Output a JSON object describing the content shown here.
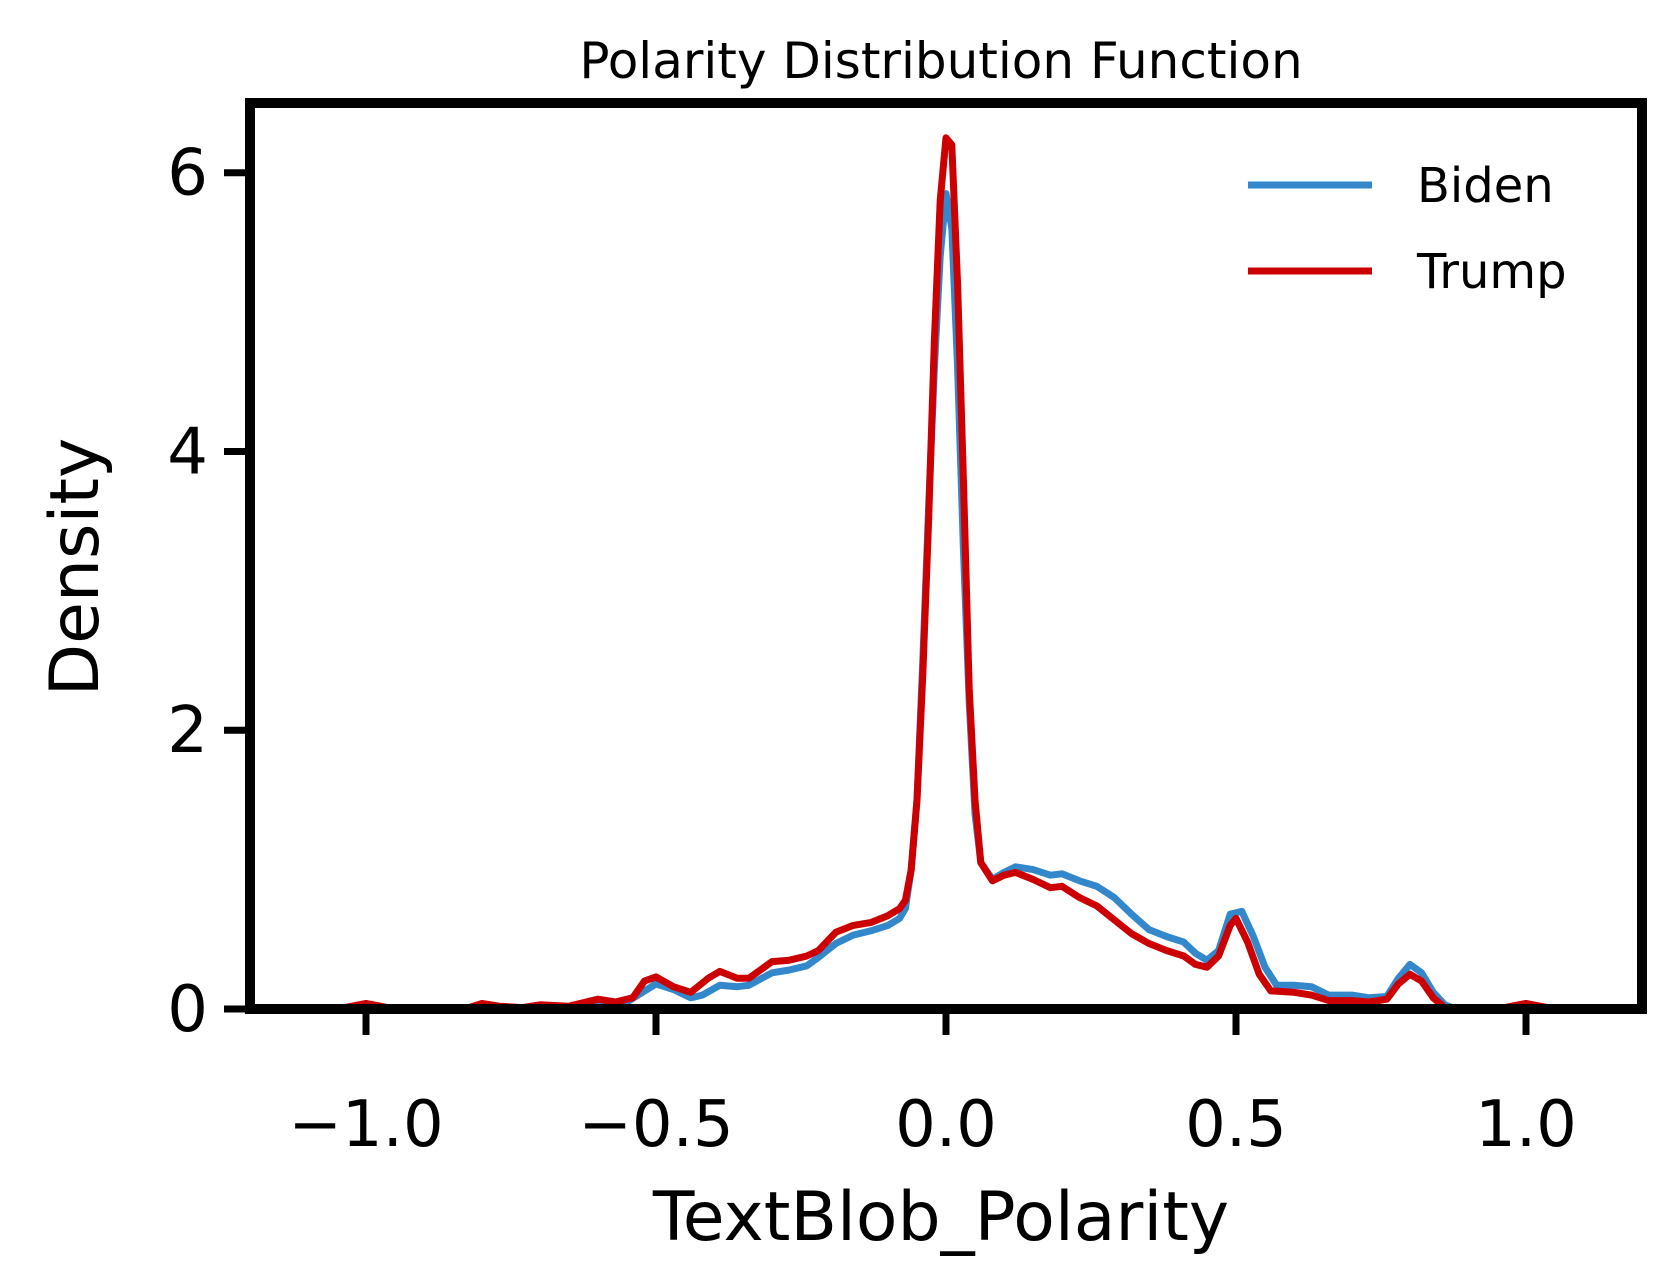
{
  "chart_data": {
    "type": "line",
    "title": "Polarity Distribution Function",
    "xlabel": "TextBlob_Polarity",
    "ylabel": "Density",
    "xlim": [
      -1.2,
      1.2
    ],
    "ylim": [
      0,
      6.5
    ],
    "xticks": [
      -1.0,
      -0.5,
      0.0,
      0.5,
      1.0
    ],
    "xtick_labels": [
      "−1.0",
      "−0.5",
      "0.0",
      "0.5",
      "1.0"
    ],
    "yticks": [
      0,
      2,
      4,
      6
    ],
    "ytick_labels": [
      "0",
      "2",
      "4",
      "6"
    ],
    "grid": false,
    "legend_position": "top-right",
    "series": [
      {
        "name": "Biden",
        "color": "#3388cc",
        "points": [
          [
            -1.05,
            0.0
          ],
          [
            -1.0,
            0.01
          ],
          [
            -0.95,
            0.0
          ],
          [
            -0.8,
            0.0
          ],
          [
            -0.75,
            0.0
          ],
          [
            -0.7,
            0.01
          ],
          [
            -0.65,
            0.01
          ],
          [
            -0.6,
            0.02
          ],
          [
            -0.55,
            0.05
          ],
          [
            -0.5,
            0.18
          ],
          [
            -0.47,
            0.14
          ],
          [
            -0.44,
            0.08
          ],
          [
            -0.42,
            0.1
          ],
          [
            -0.39,
            0.17
          ],
          [
            -0.36,
            0.16
          ],
          [
            -0.34,
            0.17
          ],
          [
            -0.3,
            0.26
          ],
          [
            -0.27,
            0.28
          ],
          [
            -0.24,
            0.31
          ],
          [
            -0.22,
            0.37
          ],
          [
            -0.19,
            0.47
          ],
          [
            -0.16,
            0.53
          ],
          [
            -0.13,
            0.56
          ],
          [
            -0.1,
            0.6
          ],
          [
            -0.08,
            0.65
          ],
          [
            -0.07,
            0.72
          ],
          [
            -0.06,
            1.0
          ],
          [
            -0.05,
            1.5
          ],
          [
            -0.04,
            2.5
          ],
          [
            -0.03,
            3.6
          ],
          [
            -0.02,
            4.6
          ],
          [
            -0.01,
            5.4
          ],
          [
            0.0,
            5.85
          ],
          [
            0.01,
            5.6
          ],
          [
            0.02,
            4.6
          ],
          [
            0.03,
            3.3
          ],
          [
            0.04,
            2.2
          ],
          [
            0.05,
            1.4
          ],
          [
            0.06,
            1.05
          ],
          [
            0.08,
            0.93
          ],
          [
            0.1,
            0.98
          ],
          [
            0.12,
            1.02
          ],
          [
            0.15,
            1.0
          ],
          [
            0.18,
            0.96
          ],
          [
            0.2,
            0.97
          ],
          [
            0.23,
            0.92
          ],
          [
            0.26,
            0.88
          ],
          [
            0.29,
            0.8
          ],
          [
            0.32,
            0.68
          ],
          [
            0.35,
            0.57
          ],
          [
            0.38,
            0.52
          ],
          [
            0.41,
            0.48
          ],
          [
            0.43,
            0.4
          ],
          [
            0.45,
            0.35
          ],
          [
            0.47,
            0.42
          ],
          [
            0.49,
            0.68
          ],
          [
            0.51,
            0.7
          ],
          [
            0.53,
            0.52
          ],
          [
            0.55,
            0.3
          ],
          [
            0.57,
            0.17
          ],
          [
            0.6,
            0.17
          ],
          [
            0.63,
            0.16
          ],
          [
            0.66,
            0.1
          ],
          [
            0.7,
            0.1
          ],
          [
            0.73,
            0.08
          ],
          [
            0.76,
            0.09
          ],
          [
            0.78,
            0.22
          ],
          [
            0.8,
            0.32
          ],
          [
            0.82,
            0.26
          ],
          [
            0.84,
            0.12
          ],
          [
            0.86,
            0.03
          ],
          [
            0.88,
            0.0
          ],
          [
            0.95,
            0.0
          ],
          [
            1.0,
            0.0
          ],
          [
            1.05,
            0.0
          ]
        ]
      },
      {
        "name": "Trump",
        "color": "#cc0000",
        "points": [
          [
            -1.05,
            0.0
          ],
          [
            -1.0,
            0.04
          ],
          [
            -0.95,
            0.0
          ],
          [
            -0.83,
            0.0
          ],
          [
            -0.8,
            0.04
          ],
          [
            -0.77,
            0.02
          ],
          [
            -0.73,
            0.01
          ],
          [
            -0.7,
            0.03
          ],
          [
            -0.65,
            0.02
          ],
          [
            -0.6,
            0.07
          ],
          [
            -0.57,
            0.05
          ],
          [
            -0.54,
            0.08
          ],
          [
            -0.52,
            0.2
          ],
          [
            -0.5,
            0.23
          ],
          [
            -0.47,
            0.16
          ],
          [
            -0.44,
            0.12
          ],
          [
            -0.41,
            0.22
          ],
          [
            -0.39,
            0.27
          ],
          [
            -0.36,
            0.22
          ],
          [
            -0.34,
            0.22
          ],
          [
            -0.3,
            0.34
          ],
          [
            -0.27,
            0.35
          ],
          [
            -0.24,
            0.38
          ],
          [
            -0.22,
            0.42
          ],
          [
            -0.19,
            0.55
          ],
          [
            -0.16,
            0.6
          ],
          [
            -0.13,
            0.62
          ],
          [
            -0.1,
            0.67
          ],
          [
            -0.08,
            0.72
          ],
          [
            -0.07,
            0.78
          ],
          [
            -0.06,
            1.0
          ],
          [
            -0.05,
            1.5
          ],
          [
            -0.04,
            2.4
          ],
          [
            -0.03,
            3.5
          ],
          [
            -0.02,
            4.8
          ],
          [
            -0.01,
            5.8
          ],
          [
            0.0,
            6.25
          ],
          [
            0.01,
            6.2
          ],
          [
            0.02,
            5.2
          ],
          [
            0.03,
            3.8
          ],
          [
            0.04,
            2.3
          ],
          [
            0.05,
            1.5
          ],
          [
            0.06,
            1.05
          ],
          [
            0.08,
            0.92
          ],
          [
            0.1,
            0.96
          ],
          [
            0.12,
            0.98
          ],
          [
            0.15,
            0.93
          ],
          [
            0.18,
            0.87
          ],
          [
            0.2,
            0.88
          ],
          [
            0.23,
            0.8
          ],
          [
            0.26,
            0.74
          ],
          [
            0.29,
            0.64
          ],
          [
            0.32,
            0.54
          ],
          [
            0.35,
            0.47
          ],
          [
            0.38,
            0.42
          ],
          [
            0.41,
            0.38
          ],
          [
            0.43,
            0.32
          ],
          [
            0.45,
            0.3
          ],
          [
            0.47,
            0.38
          ],
          [
            0.49,
            0.6
          ],
          [
            0.5,
            0.65
          ],
          [
            0.52,
            0.48
          ],
          [
            0.54,
            0.25
          ],
          [
            0.56,
            0.13
          ],
          [
            0.6,
            0.12
          ],
          [
            0.63,
            0.1
          ],
          [
            0.66,
            0.06
          ],
          [
            0.7,
            0.06
          ],
          [
            0.73,
            0.05
          ],
          [
            0.76,
            0.07
          ],
          [
            0.78,
            0.18
          ],
          [
            0.8,
            0.25
          ],
          [
            0.82,
            0.2
          ],
          [
            0.84,
            0.08
          ],
          [
            0.86,
            0.01
          ],
          [
            0.88,
            0.0
          ],
          [
            0.95,
            0.0
          ],
          [
            1.0,
            0.04
          ],
          [
            1.05,
            0.0
          ]
        ]
      }
    ]
  }
}
